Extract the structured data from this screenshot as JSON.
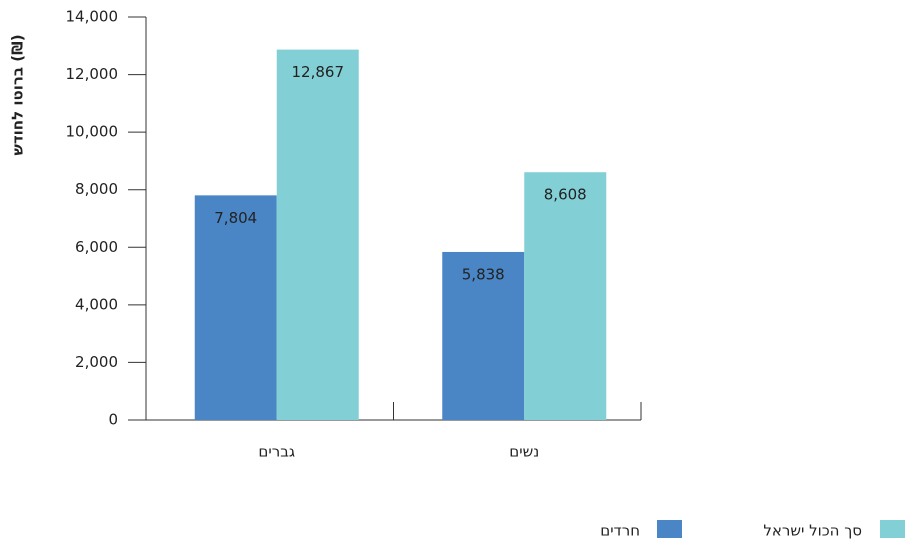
{
  "chart_data": {
    "type": "bar",
    "y_label": "ברוטו לחודש (₪)",
    "categories": [
      "גברים",
      "נשים"
    ],
    "series": [
      {
        "name": "חרדים",
        "color": "#4a86c5",
        "values": [
          7804,
          5838
        ],
        "value_labels": [
          "7,804",
          "5,838"
        ]
      },
      {
        "name": "סך הכול ישראל",
        "color": "#82d0d6",
        "values": [
          12867,
          8608
        ],
        "value_labels": [
          "12,867",
          "8,608"
        ]
      }
    ],
    "ylim": [
      0,
      14000
    ],
    "yticks": [
      0,
      {
        "value": 2000,
        "label": "2,000"
      },
      {
        "value": 4000,
        "label": "4,000"
      },
      {
        "value": 6000,
        "label": "6,000"
      },
      {
        "value": 8000,
        "label": "8,000"
      },
      {
        "value": 10000,
        "label": "10,000"
      },
      {
        "value": 12000,
        "label": "12,000"
      },
      {
        "value": 14000,
        "label": "14,000"
      }
    ]
  }
}
